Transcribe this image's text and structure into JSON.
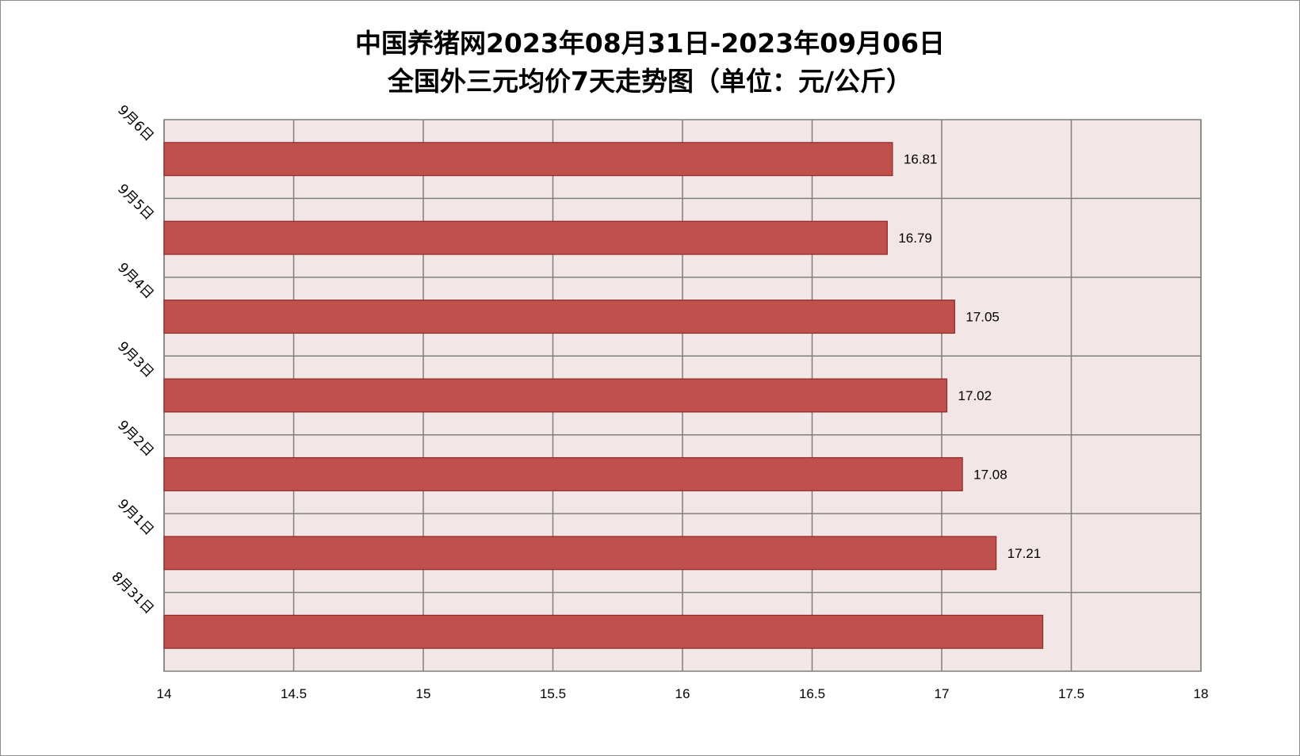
{
  "chart_data": {
    "type": "bar",
    "orientation": "horizontal",
    "title": "中国养猪网2023年08月31日-2023年09月06日",
    "subtitle": "全国外三元均价7天走势图（单位：元/公斤）",
    "xlabel": "",
    "ylabel": "",
    "xlim": [
      14,
      18
    ],
    "x_ticks": [
      "14",
      "14.5",
      "15",
      "15.5",
      "16",
      "16.5",
      "17",
      "17.5",
      "18"
    ],
    "categories": [
      "8月31日",
      "9月1日",
      "9月2日",
      "9月3日",
      "9月4日",
      "9月5日",
      "9月6日"
    ],
    "values": [
      17.39,
      17.21,
      17.08,
      17.02,
      17.05,
      16.79,
      16.81
    ],
    "data_labels": [
      "",
      "17.21",
      "17.08",
      "17.02",
      "17.05",
      "16.79",
      "16.81"
    ],
    "grid": true,
    "legend": "none",
    "colors": {
      "bar": "#c0504d",
      "bar_border": "#8e2a28",
      "plot_bg": "#f2e6e6",
      "grid": "#7f7f7f"
    }
  }
}
